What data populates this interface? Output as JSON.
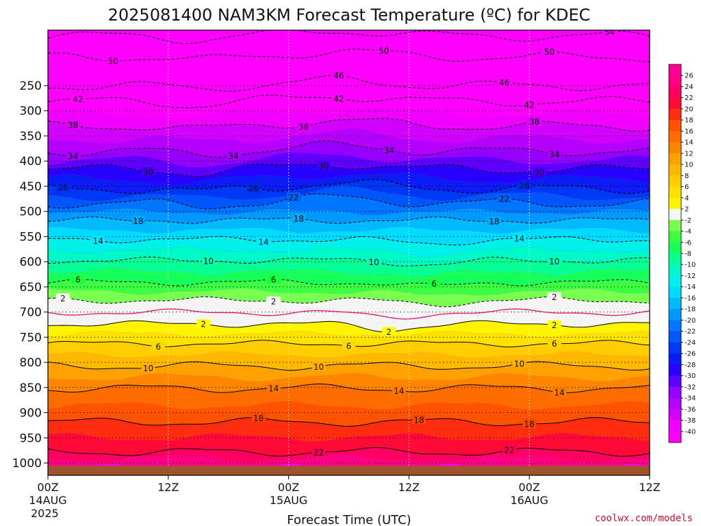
{
  "chart_data": {
    "type": "heatmap",
    "title": "2025081400 NAM3KM Forecast Temperature (ºC) for KDEC",
    "xlabel": "Forecast Time (UTC)",
    "ylabel": "",
    "y_axis_scale": "log-pressure",
    "y_axis_inverted": true,
    "ylim": [
      1050,
      200
    ],
    "yticks": [
      250,
      300,
      350,
      400,
      450,
      500,
      550,
      600,
      650,
      700,
      750,
      800,
      850,
      900,
      950,
      1000
    ],
    "x_ticks": [
      {
        "hour": 0,
        "label": "00Z",
        "sub1": "14AUG",
        "sub2": "2025"
      },
      {
        "hour": 12,
        "label": "12Z",
        "sub1": "",
        "sub2": ""
      },
      {
        "hour": 24,
        "label": "00Z",
        "sub1": "15AUG",
        "sub2": ""
      },
      {
        "hour": 36,
        "label": "12Z",
        "sub1": "",
        "sub2": ""
      },
      {
        "hour": 48,
        "label": "00Z",
        "sub1": "16AUG",
        "sub2": ""
      },
      {
        "hour": 60,
        "label": "12Z",
        "sub1": "",
        "sub2": ""
      }
    ],
    "xlim_hours": [
      0,
      60
    ],
    "grid": true,
    "surface_pressure": 1010,
    "colorbar": {
      "placement": "right",
      "levels": [
        -40,
        -38,
        -36,
        -34,
        -32,
        -30,
        -28,
        -26,
        -24,
        -22,
        -20,
        -18,
        -16,
        -14,
        -12,
        -10,
        -8,
        -6,
        -4,
        -2,
        2,
        4,
        6,
        8,
        10,
        12,
        14,
        16,
        18,
        20,
        22,
        24,
        26
      ],
      "tick_labels": [
        "-40",
        "-38",
        "-36",
        "-34",
        "-32",
        "-30",
        "-28",
        "-26",
        "-24",
        "-22",
        "-20",
        "-18",
        "-16",
        "-14",
        "-12",
        "-10",
        "-8",
        "-6",
        "-4",
        "-2",
        "2",
        "4",
        "6",
        "8",
        "10",
        "12",
        "14",
        "16",
        "18",
        "20",
        "22",
        "24",
        "26"
      ]
    },
    "temperature_profile": [
      {
        "p": 200,
        "t": -56
      },
      {
        "p": 225,
        "t": -50
      },
      {
        "p": 250,
        "t": -46
      },
      {
        "p": 265,
        "t": -42
      },
      {
        "p": 290,
        "t": -38
      },
      {
        "p": 318,
        "t": -34
      },
      {
        "p": 340,
        "t": -30
      },
      {
        "p": 365,
        "t": -26
      },
      {
        "p": 385,
        "t": -22
      },
      {
        "p": 410,
        "t": -18
      },
      {
        "p": 440,
        "t": -14
      },
      {
        "p": 475,
        "t": -10
      },
      {
        "p": 515,
        "t": -6
      },
      {
        "p": 550,
        "t": -2
      },
      {
        "p": 575,
        "t": 0
      },
      {
        "p": 600,
        "t": 2
      },
      {
        "p": 645,
        "t": 6
      },
      {
        "p": 700,
        "t": 10
      },
      {
        "p": 760,
        "t": 14
      },
      {
        "p": 860,
        "t": 18
      },
      {
        "p": 960,
        "t": 22
      },
      {
        "p": 1010,
        "t": 26
      }
    ],
    "contours": [
      {
        "value": -54,
        "label": "54",
        "label_hours": [
          56
        ]
      },
      {
        "value": -50,
        "label": "50",
        "label_hours": [
          6.5,
          33.5,
          50
        ]
      },
      {
        "value": -46,
        "label": "46",
        "label_hours": [
          29,
          45.5
        ]
      },
      {
        "value": -42,
        "label": "42",
        "label_hours": [
          3,
          29,
          48
        ]
      },
      {
        "value": -38,
        "label": "38",
        "label_hours": [
          2.5,
          25.5,
          48.5
        ]
      },
      {
        "value": -34,
        "label": "34",
        "label_hours": [
          2.5,
          18.5,
          34,
          50.5
        ]
      },
      {
        "value": -30,
        "label": "30",
        "label_hours": [
          10,
          27.5,
          49
        ]
      },
      {
        "value": -26,
        "label": "26",
        "label_hours": [
          1.5,
          20.5,
          47.5
        ]
      },
      {
        "value": -22,
        "label": "22",
        "label_hours": [
          24.5,
          45.5
        ]
      },
      {
        "value": -18,
        "label": "18",
        "label_hours": [
          9,
          25,
          44.5
        ]
      },
      {
        "value": -14,
        "label": "14",
        "label_hours": [
          5,
          21.5,
          47
        ]
      },
      {
        "value": -10,
        "label": "10",
        "label_hours": [
          16,
          32.5,
          50.5
        ]
      },
      {
        "value": -6,
        "label": "6",
        "label_hours": [
          3,
          22.5,
          38.5
        ]
      },
      {
        "value": -2,
        "label": "2",
        "label_hours": [
          1.5,
          22.5,
          50.5
        ]
      },
      {
        "value": 2,
        "label": "2",
        "label_hours": [
          15.5,
          34,
          50.5
        ]
      },
      {
        "value": 6,
        "label": "6",
        "label_hours": [
          11,
          30,
          50.5
        ]
      },
      {
        "value": 10,
        "label": "10",
        "label_hours": [
          10,
          27,
          47
        ]
      },
      {
        "value": 14,
        "label": "14",
        "label_hours": [
          22.5,
          35,
          51
        ]
      },
      {
        "value": 18,
        "label": "18",
        "label_hours": [
          21,
          37,
          48
        ]
      },
      {
        "value": 22,
        "label": "22",
        "label_hours": [
          27,
          46
        ]
      }
    ]
  },
  "credit": "coolwx.com/models",
  "colors": {
    "ground": "#a0522d",
    "freezing_line": "#e0207a",
    "contour": "#000000",
    "credit": "#c8102e"
  }
}
